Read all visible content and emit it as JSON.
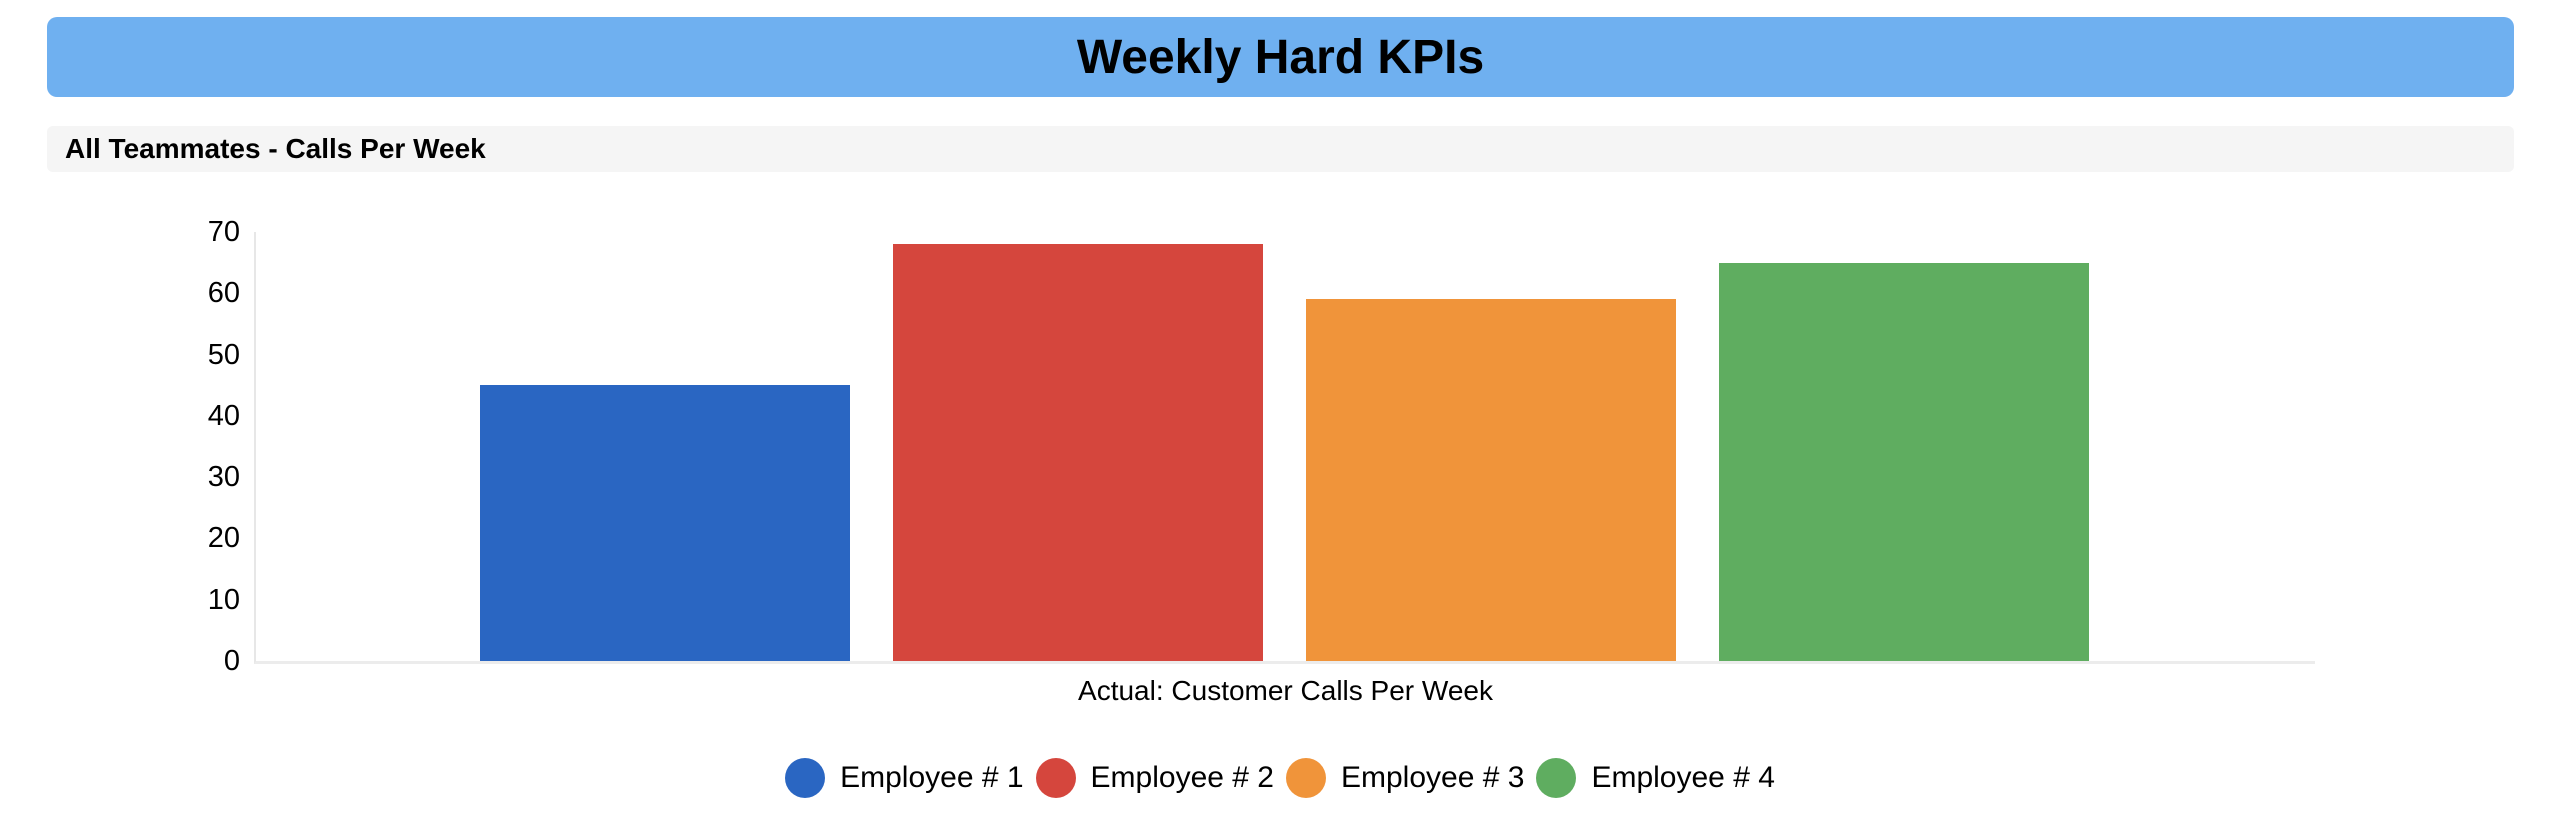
{
  "header": {
    "title": "Weekly Hard KPIs",
    "background": "#6fb0f0"
  },
  "section": {
    "title": "All Teammates - Calls Per Week",
    "background": "#f5f5f5"
  },
  "chart_data": {
    "type": "bar",
    "title": "All Teammates - Calls Per Week",
    "categories": [
      "Employee # 1",
      "Employee # 2",
      "Employee # 3",
      "Employee # 4"
    ],
    "values": [
      45,
      68,
      59,
      65
    ],
    "colors": [
      "#2a66c2",
      "#d5463d",
      "#f0943a",
      "#5fad60"
    ],
    "xlabel": "Actual: Customer Calls Per Week",
    "ylabel": "",
    "ylim": [
      0,
      70
    ],
    "yticks": [
      0,
      10,
      20,
      30,
      40,
      50,
      60,
      70
    ],
    "grid": false,
    "legend_position": "bottom",
    "legend_shape": "circle"
  }
}
